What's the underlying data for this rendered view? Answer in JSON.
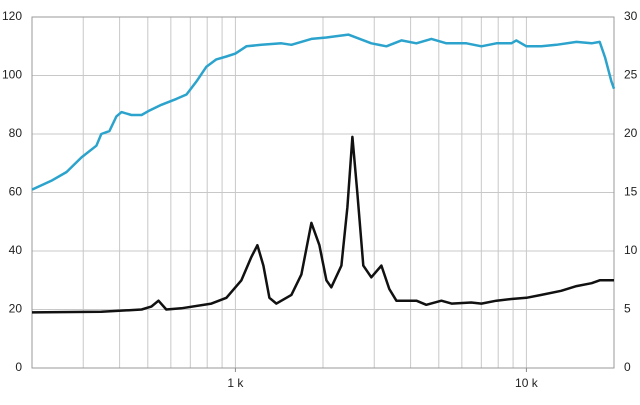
{
  "chart_data": {
    "type": "line",
    "log_x": true,
    "grid": true,
    "xlim": [
      200,
      20000
    ],
    "xticks": [
      {
        "value": 1000,
        "label": "1 k"
      },
      {
        "value": 10000,
        "label": "10 k"
      }
    ],
    "xgrid": [
      200,
      300,
      400,
      500,
      600,
      700,
      800,
      900,
      1000,
      2000,
      3000,
      4000,
      5000,
      6000,
      7000,
      8000,
      9000,
      10000,
      20000
    ],
    "ylim": [
      0,
      120
    ],
    "yticks": [
      0,
      20,
      40,
      60,
      80,
      100,
      120
    ],
    "y2lim": [
      0,
      30
    ],
    "y2ticks": [
      0,
      5,
      10,
      15,
      20,
      25,
      30
    ],
    "series": [
      {
        "color": "#2ba3cc",
        "axis": "y",
        "x": [
          200,
          233,
          263,
          296,
          333,
          346,
          369,
          390,
          406,
          439,
          476,
          506,
          557,
          627,
          679,
          735,
          795,
          860,
          931,
          1000,
          1091,
          1228,
          1439,
          1557,
          1824,
          2054,
          2444,
          2932,
          3302,
          3718,
          4187,
          4716,
          5311,
          6222,
          7004,
          7886,
          8882,
          9231,
          10000,
          11260,
          12680,
          14870,
          16750,
          17860,
          18650,
          19600,
          20000
        ],
        "values": [
          61,
          64,
          67,
          72,
          76,
          80,
          81,
          86,
          87.5,
          86.5,
          86.5,
          88,
          90,
          92,
          93.5,
          98,
          103,
          105.5,
          106.5,
          107.5,
          110,
          110.5,
          111,
          110.5,
          112.5,
          113,
          114,
          111,
          110,
          112,
          111,
          112.5,
          111,
          111,
          110,
          111,
          111,
          112,
          110,
          110,
          110.5,
          111.5,
          111,
          111.5,
          106,
          98,
          95.5
        ]
      },
      {
        "color": "#111111",
        "axis": "y2",
        "x": [
          200,
          346,
          476,
          514,
          544,
          579,
          652,
          827,
          931,
          1049,
          1135,
          1190,
          1248,
          1309,
          1383,
          1557,
          1686,
          1824,
          1944,
          2054,
          2136,
          2313,
          2425,
          2523,
          2623,
          2752,
          2932,
          3176,
          3380,
          3574,
          3871,
          4187,
          4530,
          5104,
          5535,
          6462,
          7004,
          7886,
          8882,
          10000,
          11260,
          13170,
          14870,
          16750,
          17860,
          20000
        ],
        "values": [
          4.75,
          4.8,
          5.0,
          5.25,
          5.75,
          5.0,
          5.1,
          5.5,
          6,
          7.5,
          9.5,
          10.5,
          8.75,
          6,
          5.5,
          6.25,
          8,
          12.4,
          10.5,
          7.5,
          6.9,
          8.75,
          13.75,
          19.75,
          15,
          8.75,
          7.75,
          8.75,
          6.75,
          5.75,
          5.75,
          5.75,
          5.4,
          5.75,
          5.5,
          5.6,
          5.5,
          5.75,
          5.9,
          6,
          6.25,
          6.6,
          7,
          7.25,
          7.5,
          7.5
        ]
      }
    ]
  }
}
